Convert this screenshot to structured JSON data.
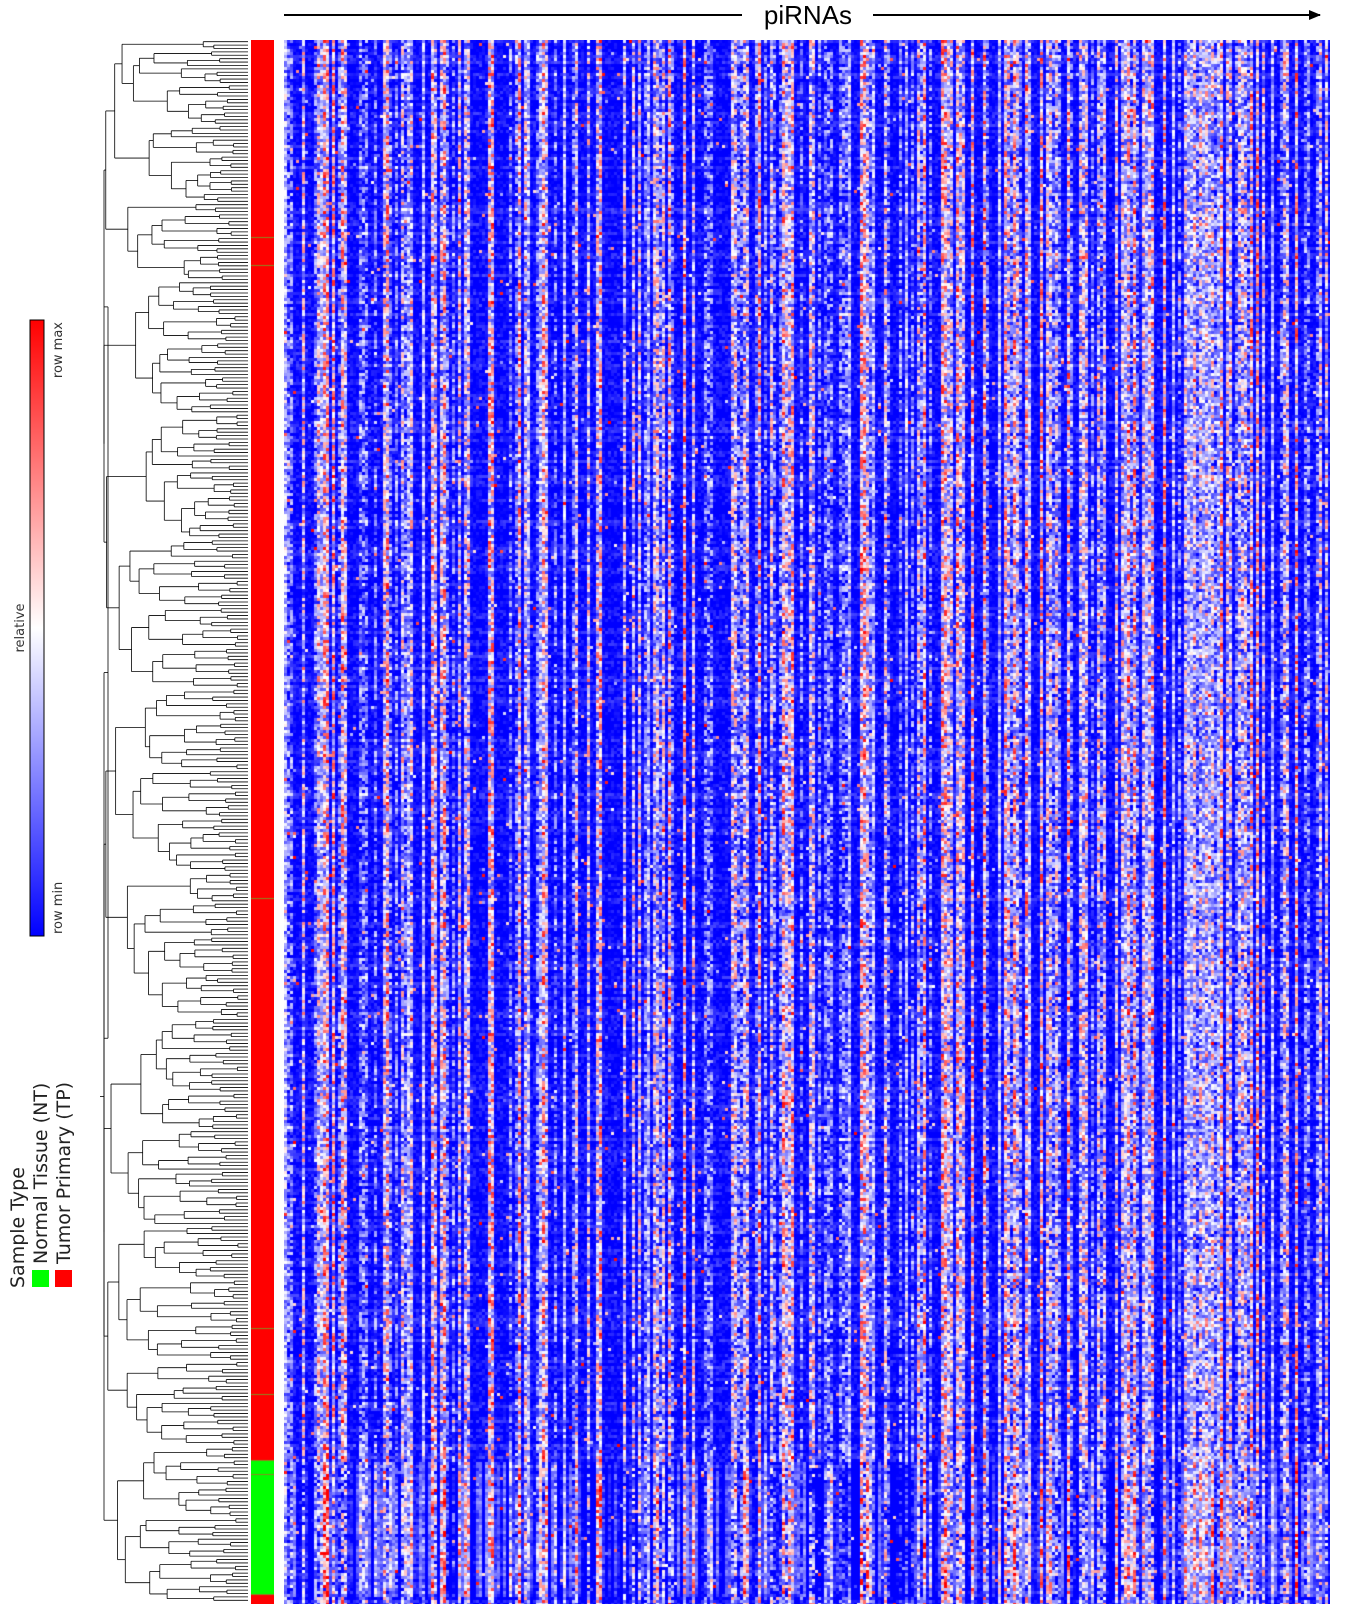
{
  "axis": {
    "arrow_label": "piRNAs"
  },
  "colorbar": {
    "max_label": "row max",
    "mid_label": "relative",
    "min_label": "row min",
    "colors": {
      "min": "#0000ff",
      "mid": "#ffffff",
      "max": "#ff0000"
    }
  },
  "legend": {
    "title": "Sample Type",
    "items": [
      {
        "label": "Normal Tissue (NT)",
        "color": "#00ff00"
      },
      {
        "label": "Tumor Primary (TP)",
        "color": "#ff0000"
      }
    ]
  },
  "chart_data": {
    "type": "heatmap",
    "x_label": "piRNAs",
    "colorbar_range": [
      "row min",
      "row max"
    ],
    "colorbar_mid_label": "relative",
    "sample_annotation": {
      "title": "Sample Type",
      "categories": [
        "Normal Tissue (NT)",
        "Tumor Primary (TP)"
      ],
      "colors": {
        "NT": "#00ff00",
        "TP": "#ff0000"
      },
      "order_top_to_bottom": [
        {
          "type": "TP",
          "fraction": 0.126
        },
        {
          "type": "TP",
          "fraction": 0.018
        },
        {
          "type": "TP",
          "fraction": 0.405
        },
        {
          "type": "TP",
          "fraction": 0.275
        },
        {
          "type": "TP",
          "fraction": 0.042
        },
        {
          "type": "TP",
          "fraction": 0.042
        },
        {
          "type": "NT",
          "fraction": 0.009
        },
        {
          "type": "NT",
          "fraction": 0.077
        },
        {
          "type": "TP",
          "fraction": 0.006
        }
      ]
    },
    "rows_clustered": true,
    "row_dendrogram": true
  }
}
